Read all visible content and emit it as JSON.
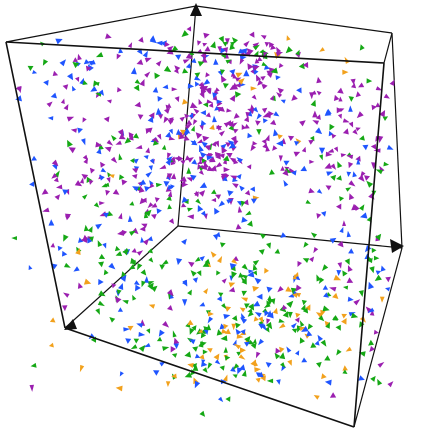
{
  "colors": {
    "background": "#ffffff",
    "frame": "#111111",
    "series": {
      "purple": "#9b1fb0",
      "blue": "#1f55ff",
      "green": "#15a815",
      "orange": "#f2a11c"
    }
  },
  "icons": {
    "axis_marker": "triangle-arrow-icon",
    "particle": "triangle-arrow-icon"
  }
}
